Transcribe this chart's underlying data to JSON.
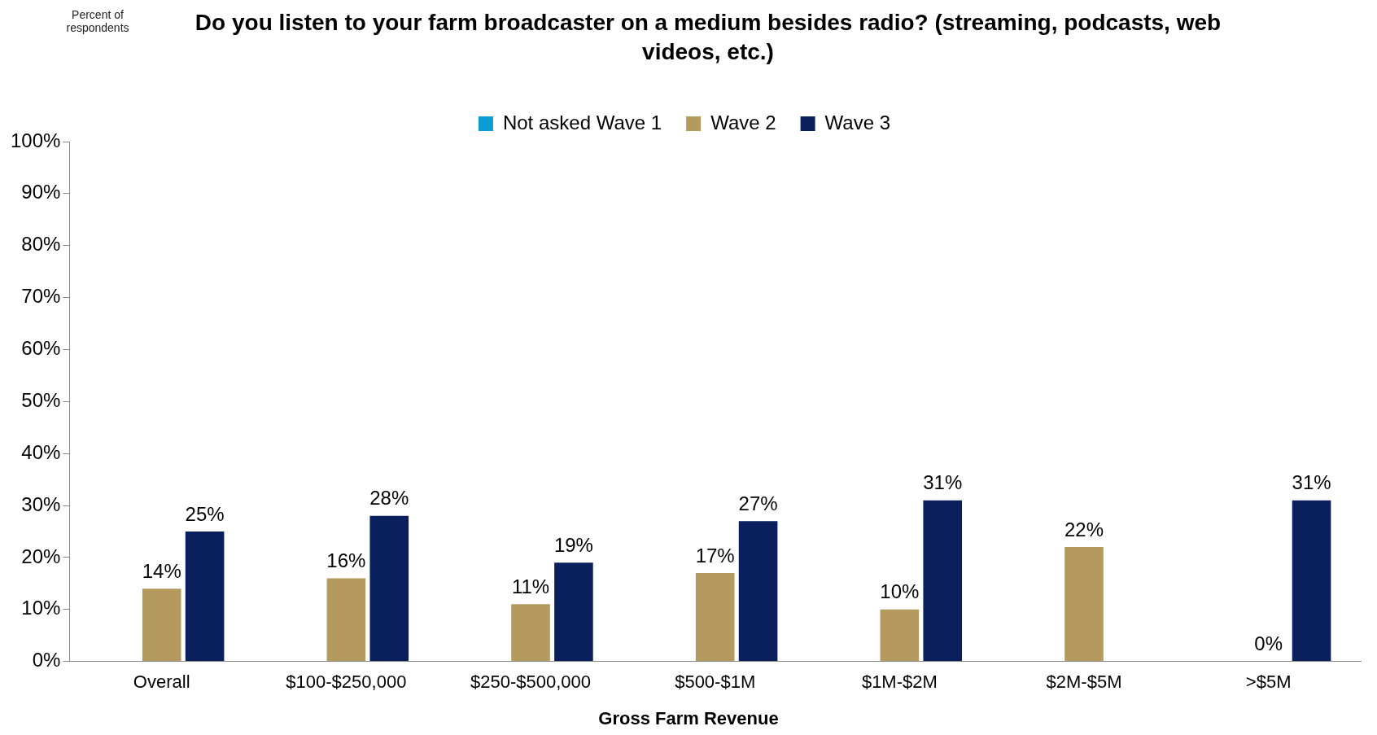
{
  "chart_data": {
    "type": "bar",
    "title": "Do you listen to your farm broadcaster on a medium besides radio? (streaming, podcasts, web videos, etc.)",
    "annotations": [
      "Percent of respondents"
    ],
    "xlabel": "Gross Farm Revenue",
    "categories": [
      "Overall",
      "$100-$250,000",
      "$250-$500,000",
      "$500-$1M",
      "$1M-$2M",
      "$2M-$5M",
      ">$5M"
    ],
    "series": [
      {
        "name": "Not asked Wave 1",
        "color": "#0c9bd2",
        "values": [
          null,
          null,
          null,
          null,
          null,
          null,
          null
        ]
      },
      {
        "name": "Wave 2",
        "color": "#b59a5f",
        "values": [
          14,
          16,
          11,
          17,
          10,
          22,
          0
        ],
        "value_labels": [
          "14%",
          "16%",
          "11%",
          "17%",
          "10%",
          "22%",
          "0%"
        ]
      },
      {
        "name": "Wave 3",
        "color": "#0a205c",
        "values": [
          25,
          28,
          19,
          27,
          31,
          null,
          31
        ],
        "value_labels": [
          "25%",
          "28%",
          "19%",
          "27%",
          "31%",
          null,
          "31%"
        ]
      }
    ],
    "ylim": [
      0,
      100
    ],
    "yticks": [
      {
        "value": 0,
        "label": "0%"
      },
      {
        "value": 10,
        "label": "10%"
      },
      {
        "value": 20,
        "label": "20%"
      },
      {
        "value": 30,
        "label": "30%"
      },
      {
        "value": 40,
        "label": "40%"
      },
      {
        "value": 50,
        "label": "50%"
      },
      {
        "value": 60,
        "label": "60%"
      },
      {
        "value": 70,
        "label": "70%"
      },
      {
        "value": 80,
        "label": "80%"
      },
      {
        "value": 90,
        "label": "90%"
      },
      {
        "value": 100,
        "label": "100%"
      }
    ],
    "grid": false,
    "legend": "top"
  }
}
